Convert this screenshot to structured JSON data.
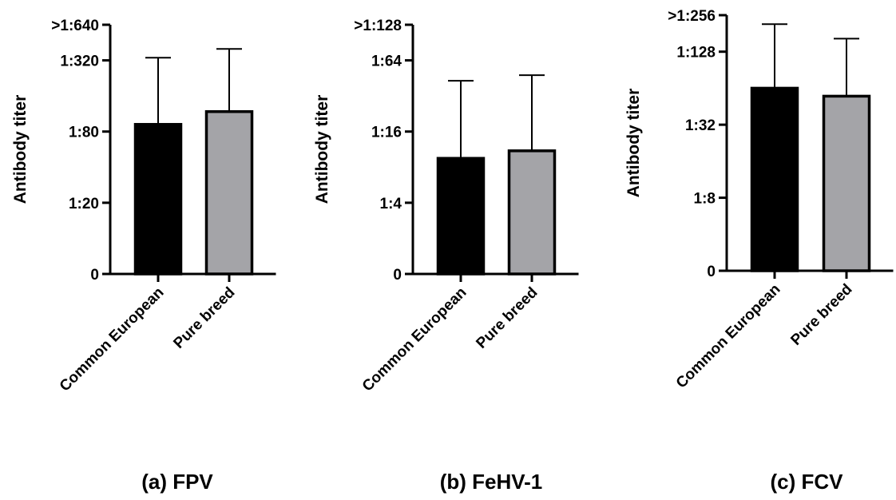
{
  "chart_data": [
    {
      "type": "bar",
      "title": "(a) FPV",
      "ylabel": "Antibody titer",
      "y_scale": "log2",
      "categories": [
        "Common European",
        "Pure breed"
      ],
      "ticks": [
        {
          "label": "0",
          "value": 5
        },
        {
          "label": "1:20",
          "value": 20
        },
        {
          "label": "1:80",
          "value": 80
        },
        {
          "label": "1:320",
          "value": 320
        },
        {
          "label": ">1:640",
          "value": 640
        }
      ],
      "values": [
        92,
        118
      ],
      "error_upper": [
        337,
        400
      ],
      "bar_colors": [
        "#000000",
        "#a4a4a8"
      ]
    },
    {
      "type": "bar",
      "title": "(b) FeHV-1",
      "ylabel": "Antibody titer",
      "y_scale": "log2",
      "categories": [
        "Common European",
        "Pure breed"
      ],
      "ticks": [
        {
          "label": "0",
          "value": 1
        },
        {
          "label": "1:4",
          "value": 4
        },
        {
          "label": "1:16",
          "value": 16
        },
        {
          "label": "1:64",
          "value": 64
        },
        {
          "label": ">1:128",
          "value": 128
        }
      ],
      "values": [
        9.5,
        11
      ],
      "error_upper": [
        43,
        48
      ],
      "bar_colors": [
        "#000000",
        "#a4a4a8"
      ]
    },
    {
      "type": "bar",
      "title": "(c) FCV",
      "ylabel": "Antibody titer",
      "y_scale": "log2",
      "categories": [
        "Common European",
        "Pure breed"
      ],
      "ticks": [
        {
          "label": "0",
          "value": 2
        },
        {
          "label": "1:8",
          "value": 8
        },
        {
          "label": "1:32",
          "value": 32
        },
        {
          "label": "1:128",
          "value": 128
        },
        {
          "label": ">1:256",
          "value": 256
        }
      ],
      "values": [
        64,
        55
      ],
      "error_upper": [
        216,
        164
      ],
      "bar_colors": [
        "#000000",
        "#a4a4a8"
      ]
    }
  ]
}
